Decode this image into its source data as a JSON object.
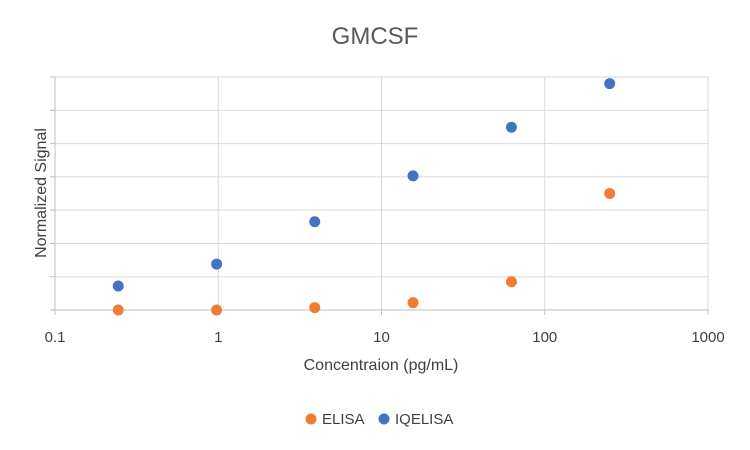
{
  "chart_data": {
    "type": "scatter",
    "title": "GMCSF",
    "xlabel": "Concentraion (pg/mL)",
    "ylabel": "Normalized Signal",
    "x_scale": "log",
    "xlim": [
      0.1,
      1000
    ],
    "x_ticks": [
      "0.1",
      "1",
      "10",
      "100",
      "1000"
    ],
    "ylim": [
      0,
      7
    ],
    "y_tick_labels_shown": false,
    "grid": true,
    "legend_position": "bottom",
    "series": [
      {
        "name": "ELISA",
        "color": "#ED7D31",
        "x": [
          0.244,
          0.977,
          3.9,
          15.6,
          62.5,
          250
        ],
        "y": [
          0.0,
          0.0,
          0.07,
          0.22,
          0.85,
          3.5
        ]
      },
      {
        "name": "IQELISA",
        "color": "#4472C4",
        "x": [
          0.244,
          0.977,
          3.9,
          15.6,
          62.5,
          250
        ],
        "y": [
          0.72,
          1.38,
          2.65,
          4.03,
          5.49,
          6.8
        ]
      }
    ]
  }
}
